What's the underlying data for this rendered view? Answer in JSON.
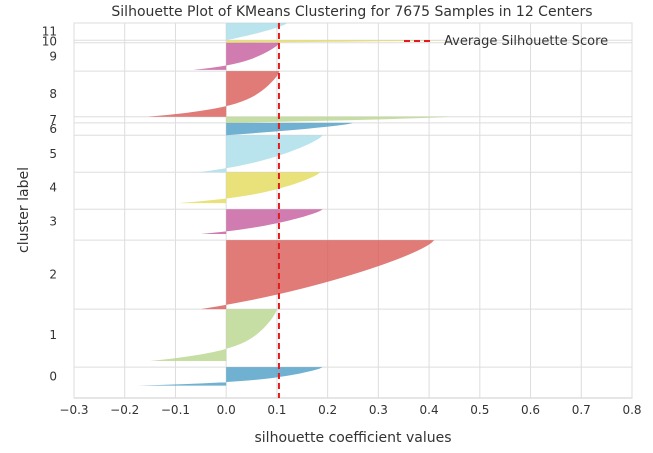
{
  "chart_data": {
    "type": "area",
    "title": "Silhouette Plot of KMeans Clustering for 7675 Samples in 12 Centers",
    "xlabel": "silhouette coefficient values",
    "ylabel": "cluster label",
    "xlim": [
      -0.3,
      0.8
    ],
    "x_ticks": [
      "−0.3",
      "−0.2",
      "−0.1",
      "0.0",
      "0.1",
      "0.2",
      "0.3",
      "0.4",
      "0.5",
      "0.6",
      "0.7",
      "0.8"
    ],
    "x_tick_values": [
      -0.3,
      -0.2,
      -0.1,
      0.0,
      0.1,
      0.2,
      0.3,
      0.4,
      0.5,
      0.6,
      0.7,
      0.8
    ],
    "grid": true,
    "legend_position": "top-right",
    "average_silhouette_score": 0.104,
    "average_line_label": "Average Silhouette Score",
    "average_line_color": "#e41a1c",
    "clusters": [
      {
        "label": "0",
        "y_start": 10,
        "y_end": 25,
        "color": "#4c9ec6",
        "max": 0.19,
        "min": -0.175,
        "neg_profile": [
          0.0,
          0.3,
          0.58,
          0.68,
          0.74,
          0.82,
          0.9,
          1.0
        ]
      },
      {
        "label": "1",
        "y_start": 30,
        "y_end": 72,
        "color": "#b8d68c",
        "max": 0.1,
        "min": -0.15,
        "neg_profile": [
          0.0,
          0.3,
          0.58,
          0.68,
          0.74,
          0.82,
          0.9,
          1.0
        ]
      },
      {
        "label": "2",
        "y_start": 72,
        "y_end": 128,
        "color": "#d85a56",
        "max": 0.41,
        "min": -0.05,
        "neg_profile": [
          0.0,
          0.2,
          1.0
        ]
      },
      {
        "label": "3",
        "y_start": 133,
        "y_end": 153,
        "color": "#c45b9e",
        "max": 0.19,
        "min": -0.05,
        "neg_profile": [
          0.0,
          0.2,
          1.0
        ]
      },
      {
        "label": "4",
        "y_start": 158,
        "y_end": 183,
        "color": "#e3d959",
        "max": 0.185,
        "min": -0.095,
        "neg_profile": [
          0.0,
          0.3,
          0.58,
          0.68,
          0.74,
          0.82,
          0.9,
          1.0
        ]
      },
      {
        "label": "5",
        "y_start": 183,
        "y_end": 213,
        "color": "#a8dce8",
        "max": 0.19,
        "min": -0.055,
        "neg_profile": [
          0.0,
          0.2,
          1.0
        ]
      },
      {
        "label": "6",
        "y_start": 213,
        "y_end": 223,
        "color": "#4c9ec6",
        "max": 0.25,
        "min": 0.0,
        "neg_profile": [
          0.0
        ]
      },
      {
        "label": "7",
        "y_start": 223,
        "y_end": 228,
        "color": "#b8d68c",
        "max": 0.44,
        "min": 0.0,
        "neg_profile": [
          0.0
        ]
      },
      {
        "label": "8",
        "y_start": 228,
        "y_end": 265,
        "color": "#d85a56",
        "max": 0.105,
        "min": -0.155,
        "neg_profile": [
          0.0,
          0.3,
          0.58,
          0.68,
          0.74,
          0.82,
          0.9,
          1.0
        ]
      },
      {
        "label": "9",
        "y_start": 266,
        "y_end": 288,
        "color": "#c45b9e",
        "max": 0.105,
        "min": -0.065,
        "neg_profile": [
          0.0,
          0.2,
          1.0
        ]
      },
      {
        "label": "10",
        "y_start": 288,
        "y_end": 290,
        "color": "#e3d959",
        "max": 0.44,
        "min": 0.0,
        "neg_profile": [
          0.0
        ]
      },
      {
        "label": "11",
        "y_start": 290,
        "y_end": 304,
        "color": "#a8dce8",
        "max": 0.12,
        "min": 0.0,
        "neg_profile": [
          0.0
        ]
      }
    ],
    "ylim": [
      0,
      304
    ]
  }
}
